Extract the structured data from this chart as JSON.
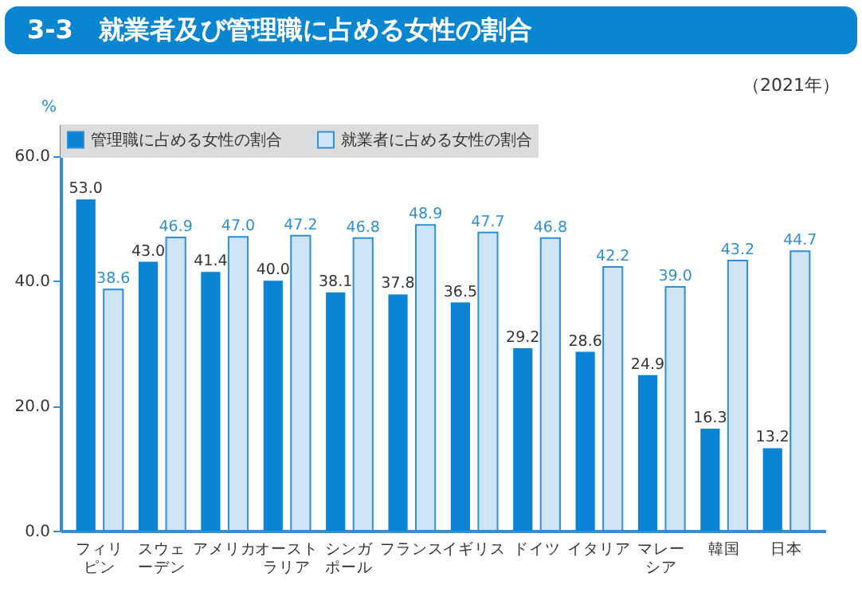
{
  "chart_data": {
    "type": "bar",
    "title": "3-3　就業者及び管理職に占める女性の割合",
    "subtitle": "（2021年）",
    "ylabel": "%",
    "categories": [
      "フィリピン",
      "スウェーデン",
      "アメリカ",
      "オーストラリア",
      "シンガポール",
      "フランス",
      "イギリス",
      "ドイツ",
      "イタリア",
      "マレーシア",
      "韓国",
      "日本"
    ],
    "series": [
      {
        "name": "管理職に占める女性の割合",
        "color": "#0b84d6",
        "values": [
          53.0,
          43.0,
          41.4,
          40.0,
          38.1,
          37.8,
          36.5,
          29.2,
          28.6,
          24.9,
          16.3,
          13.2
        ],
        "value_labels": [
          "53.0",
          "43.0",
          "41.4",
          "40.0",
          "38.1",
          "37.8",
          "36.5",
          "29.2",
          "28.6",
          "24.9",
          "16.3",
          "13.2"
        ]
      },
      {
        "name": "就業者に占める女性の割合",
        "color": "#cfe4f6",
        "values": [
          38.6,
          46.9,
          47.0,
          47.2,
          46.8,
          48.9,
          47.7,
          46.8,
          42.2,
          39.0,
          43.2,
          44.7
        ],
        "value_labels": [
          "38.6",
          "46.9",
          "47.0",
          "47.2",
          "46.8",
          "48.9",
          "47.7",
          "46.8",
          "42.2",
          "39.0",
          "43.2",
          "44.7"
        ]
      }
    ],
    "ylim": [
      0,
      65
    ],
    "yticks": [
      {
        "value": 0,
        "label": "0.0"
      },
      {
        "value": 20,
        "label": "20.0"
      },
      {
        "value": 40,
        "label": "40.0"
      },
      {
        "value": 60,
        "label": "60.0"
      }
    ],
    "legend": "top left",
    "grid": false
  }
}
